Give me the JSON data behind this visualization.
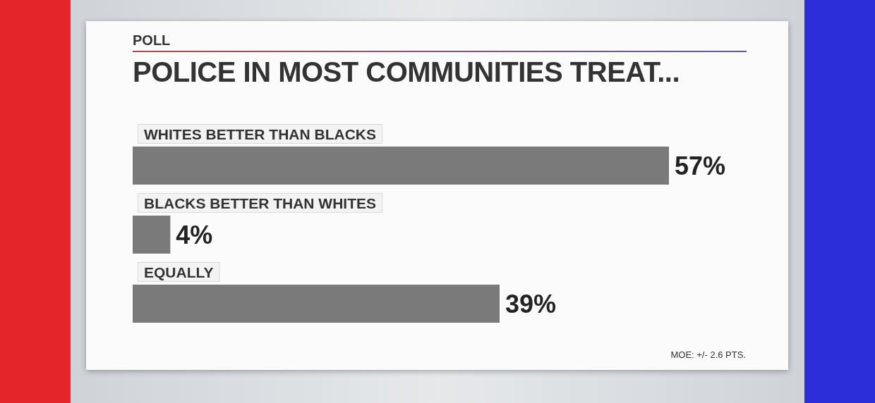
{
  "chart_data": {
    "type": "bar",
    "orientation": "horizontal",
    "title": "POLICE IN MOST COMMUNITIES TREAT...",
    "subtitle": "POLL",
    "categories": [
      "WHITES BETTER THAN BLACKS",
      "BLACKS BETTER THAN WHITES",
      "EQUALLY"
    ],
    "values": [
      57,
      4,
      39
    ],
    "value_labels": [
      "57%",
      "4%",
      "39%"
    ],
    "color": "#7a7a7a",
    "annotations": [
      "MOE: +/- 2.6 PTS."
    ]
  }
}
